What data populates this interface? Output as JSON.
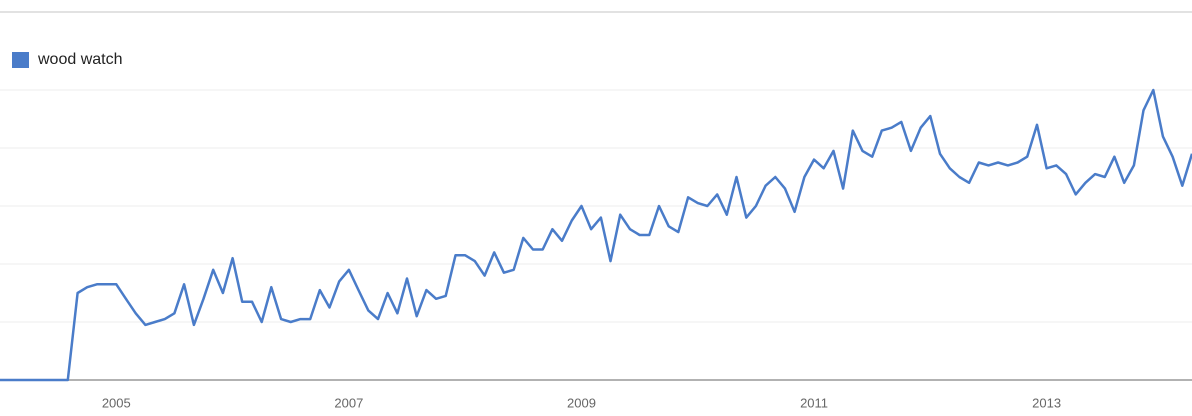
{
  "chart_data": {
    "type": "line",
    "x": [
      2004.0,
      2004.083,
      2004.167,
      2004.25,
      2004.333,
      2004.417,
      2004.5,
      2004.583,
      2004.667,
      2004.75,
      2004.833,
      2004.917,
      2005.0,
      2005.083,
      2005.167,
      2005.25,
      2005.333,
      2005.417,
      2005.5,
      2005.583,
      2005.667,
      2005.75,
      2005.833,
      2005.917,
      2006.0,
      2006.083,
      2006.167,
      2006.25,
      2006.333,
      2006.417,
      2006.5,
      2006.583,
      2006.667,
      2006.75,
      2006.833,
      2006.917,
      2007.0,
      2007.083,
      2007.167,
      2007.25,
      2007.333,
      2007.417,
      2007.5,
      2007.583,
      2007.667,
      2007.75,
      2007.833,
      2007.917,
      2008.0,
      2008.083,
      2008.167,
      2008.25,
      2008.333,
      2008.417,
      2008.5,
      2008.583,
      2008.667,
      2008.75,
      2008.833,
      2008.917,
      2009.0,
      2009.083,
      2009.167,
      2009.25,
      2009.333,
      2009.417,
      2009.5,
      2009.583,
      2009.667,
      2009.75,
      2009.833,
      2009.917,
      2010.0,
      2010.083,
      2010.167,
      2010.25,
      2010.333,
      2010.417,
      2010.5,
      2010.583,
      2010.667,
      2010.75,
      2010.833,
      2010.917,
      2011.0,
      2011.083,
      2011.167,
      2011.25,
      2011.333,
      2011.417,
      2011.5,
      2011.583,
      2011.667,
      2011.75,
      2011.833,
      2011.917,
      2012.0,
      2012.083,
      2012.167,
      2012.25,
      2012.333,
      2012.417,
      2012.5,
      2012.583,
      2012.667,
      2012.75,
      2012.833,
      2012.917,
      2013.0,
      2013.083,
      2013.167,
      2013.25,
      2013.333,
      2013.417,
      2013.5,
      2013.583,
      2013.667,
      2013.75,
      2013.833,
      2013.917,
      2014.0,
      2014.083,
      2014.167,
      2014.25
    ],
    "series": [
      {
        "name": "wood watch",
        "color": "#4a7cc9",
        "values": [
          0,
          0,
          0,
          0,
          0,
          0,
          0,
          0,
          30,
          32,
          33,
          33,
          33,
          28,
          23,
          19,
          20,
          21,
          23,
          33,
          19,
          28,
          38,
          30,
          42,
          27,
          27,
          20,
          32,
          21,
          20,
          21,
          21,
          31,
          25,
          34,
          38,
          31,
          24,
          21,
          30,
          23,
          35,
          22,
          31,
          28,
          29,
          43,
          43,
          41,
          36,
          44,
          37,
          38,
          49,
          45,
          45,
          52,
          48,
          55,
          60,
          52,
          56,
          41,
          57,
          52,
          50,
          50,
          60,
          53,
          51,
          63,
          61,
          60,
          64,
          57,
          70,
          56,
          60,
          67,
          70,
          66,
          58,
          70,
          76,
          73,
          79,
          66,
          86,
          79,
          77,
          86,
          87,
          89,
          79,
          87,
          91,
          78,
          73,
          70,
          68,
          75,
          74,
          75,
          74,
          75,
          77,
          88,
          73,
          74,
          71,
          64,
          68,
          71,
          70,
          77,
          68,
          74,
          93,
          100,
          84,
          77,
          67,
          78
        ]
      }
    ],
    "xlim": [
      2004,
      2014.25
    ],
    "xticks": [
      2005,
      2007,
      2009,
      2011,
      2013
    ],
    "ylim": [
      0,
      100
    ],
    "yticks": [
      0,
      20,
      40,
      60,
      80,
      100
    ],
    "grid": true,
    "legend": "top-left"
  }
}
